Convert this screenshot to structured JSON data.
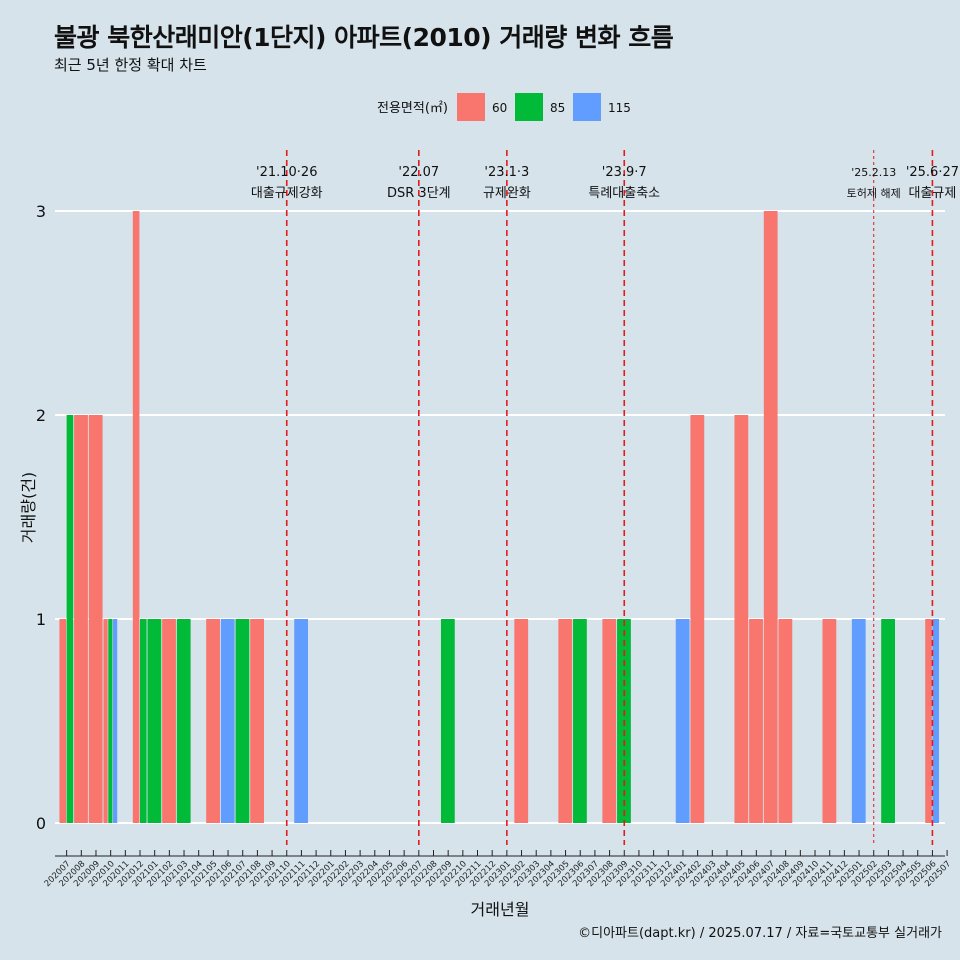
{
  "title": "불광 북한산래미안(1단지) 아파트(2010) 거래량 변화 흐름",
  "subtitle": "최근 5년 한정 확대 차트",
  "caption": "©디아파트(dapt.kr) / 2025.07.17 / 자료=국토교통부 실거래가",
  "colors": {
    "background": "#d6e3ea",
    "series_60": "#f8766d",
    "series_85": "#00ba38",
    "series_115": "#619cff",
    "event_line": "#e41a1c",
    "grid": "#ffffff"
  },
  "chart_data": {
    "type": "bar",
    "xlabel": "거래년월",
    "ylabel": "거래량(건)",
    "ylim": [
      0,
      3
    ],
    "yticks": [
      0,
      1,
      2,
      3
    ],
    "grid": "horizontal",
    "legend": {
      "title": "전용면적(㎡)",
      "position": "top",
      "entries": [
        "60",
        "85",
        "115"
      ]
    },
    "categories": [
      "202007",
      "202008",
      "202009",
      "202010",
      "202011",
      "202012",
      "202101",
      "202102",
      "202103",
      "202104",
      "202105",
      "202106",
      "202107",
      "202108",
      "202109",
      "202110",
      "202111",
      "202112",
      "202201",
      "202202",
      "202203",
      "202204",
      "202205",
      "202206",
      "202207",
      "202208",
      "202209",
      "202210",
      "202211",
      "202212",
      "202301",
      "202302",
      "202303",
      "202304",
      "202305",
      "202306",
      "202307",
      "202308",
      "202309",
      "202310",
      "202311",
      "202312",
      "202401",
      "202402",
      "202403",
      "202404",
      "202405",
      "202406",
      "202407",
      "202408",
      "202409",
      "202410",
      "202411",
      "202412",
      "202501",
      "202502",
      "202503",
      "202504",
      "202505",
      "202506",
      "202507"
    ],
    "series": [
      {
        "name": "60",
        "values": [
          1,
          2,
          2,
          1,
          0,
          3,
          0,
          1,
          0,
          0,
          1,
          0,
          0,
          1,
          0,
          0,
          0,
          0,
          0,
          0,
          0,
          0,
          0,
          0,
          0,
          0,
          0,
          0,
          0,
          0,
          0,
          1,
          0,
          0,
          1,
          0,
          0,
          1,
          0,
          0,
          0,
          0,
          0,
          2,
          0,
          0,
          2,
          1,
          3,
          1,
          0,
          0,
          1,
          0,
          0,
          0,
          0,
          0,
          0,
          1,
          0
        ]
      },
      {
        "name": "85",
        "values": [
          2,
          0,
          0,
          1,
          0,
          1,
          1,
          0,
          1,
          0,
          0,
          0,
          1,
          0,
          0,
          0,
          0,
          0,
          0,
          0,
          0,
          0,
          0,
          0,
          0,
          0,
          1,
          0,
          0,
          0,
          0,
          0,
          0,
          0,
          0,
          1,
          0,
          0,
          1,
          0,
          0,
          0,
          0,
          0,
          0,
          0,
          0,
          0,
          0,
          0,
          0,
          0,
          0,
          0,
          0,
          0,
          1,
          0,
          0,
          0,
          0
        ]
      },
      {
        "name": "115",
        "values": [
          0,
          0,
          0,
          1,
          0,
          0,
          0,
          0,
          0,
          0,
          0,
          1,
          0,
          0,
          0,
          0,
          1,
          0,
          0,
          0,
          0,
          0,
          0,
          0,
          0,
          0,
          0,
          0,
          0,
          0,
          0,
          0,
          0,
          0,
          0,
          0,
          0,
          0,
          0,
          0,
          0,
          0,
          1,
          0,
          0,
          0,
          0,
          0,
          0,
          0,
          0,
          0,
          0,
          0,
          1,
          0,
          0,
          0,
          0,
          1,
          0
        ]
      }
    ],
    "events": [
      {
        "date": "'21.10·26",
        "label": "대출규제강화",
        "at": "202110",
        "style": "dashed"
      },
      {
        "date": "'22.07",
        "label": "DSR 3단계",
        "at": "202207",
        "style": "dashed"
      },
      {
        "date": "'23.1·3",
        "label": "규제완화",
        "at": "202301",
        "style": "dashed"
      },
      {
        "date": "'23.9·7",
        "label": "특례대출축소",
        "at": "202309",
        "style": "dashed"
      },
      {
        "date": "'25.2.13",
        "label": "토허제 해제",
        "at": "202502",
        "style": "dotted"
      },
      {
        "date": "'25.6·27",
        "label": "대출규제",
        "at": "202506",
        "style": "dashed"
      }
    ]
  }
}
